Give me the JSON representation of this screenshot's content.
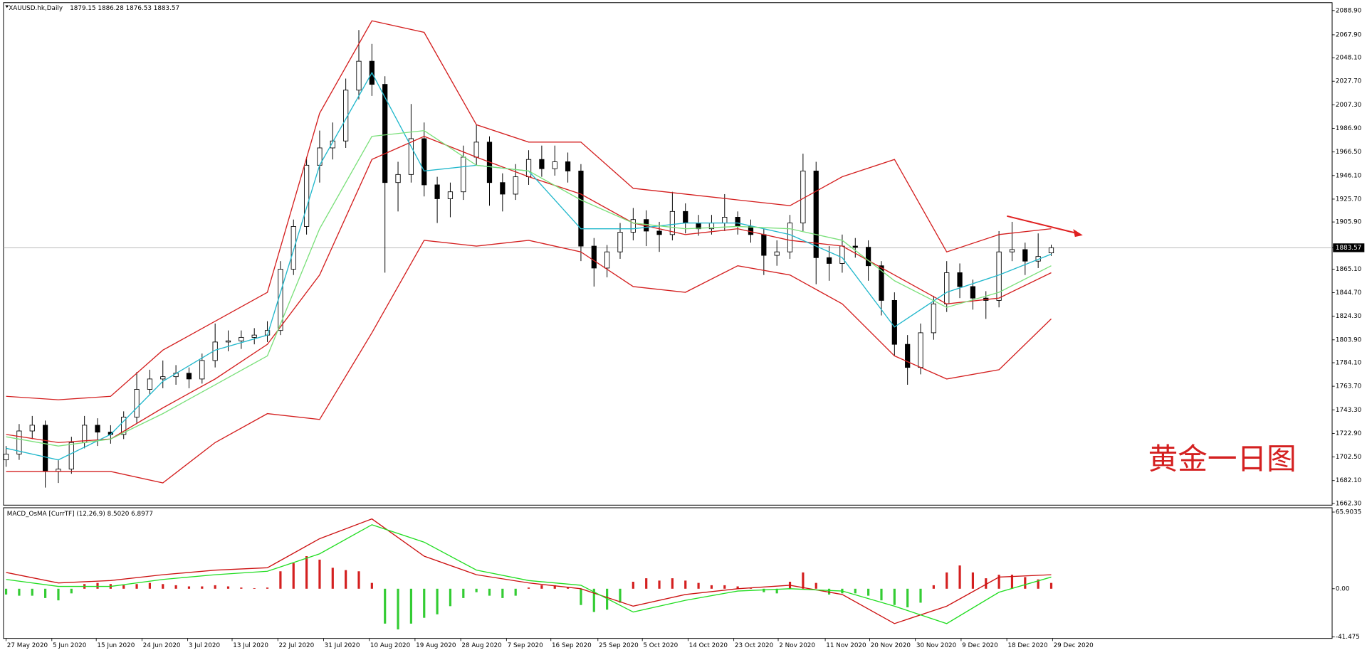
{
  "chart_data": [
    {
      "type": "candlestick",
      "title": "XAUUSD.hk,Daily",
      "annotation": "黄金一日图",
      "xlim": [
        -0.2,
        101.5
      ],
      "ylim": [
        1660.8,
        2095.7
      ],
      "yticks": [
        {
          "value": 2088.9,
          "label": "2088.90"
        },
        {
          "value": 2067.9,
          "label": "2067.90"
        },
        {
          "value": 2048.1,
          "label": "2048.10"
        },
        {
          "value": 2027.7,
          "label": "2027.70"
        },
        {
          "value": 2007.3,
          "label": "2007.30"
        },
        {
          "value": 1986.9,
          "label": "1986.90"
        },
        {
          "value": 1966.5,
          "label": "1966.50"
        },
        {
          "value": 1946.1,
          "label": "1946.10"
        },
        {
          "value": 1925.7,
          "label": "1925.70"
        },
        {
          "value": 1905.9,
          "label": "1905.90"
        },
        1883.57,
        {
          "value": 1865.1,
          "label": "1865.10"
        },
        {
          "value": 1844.7,
          "label": "1844.70"
        },
        {
          "value": 1824.3,
          "label": "1824.30"
        },
        {
          "value": 1803.9,
          "label": "1803.90"
        },
        {
          "value": 1784.1,
          "label": "1784.10"
        },
        {
          "value": 1763.7,
          "label": "1763.70"
        },
        {
          "value": 1743.3,
          "label": "1743.30"
        },
        {
          "value": 1722.9,
          "label": "1722.90"
        },
        {
          "value": 1702.5,
          "label": "1702.50"
        },
        {
          "value": 1682.1,
          "label": "1682.10"
        },
        {
          "value": 1662.3,
          "label": "1662.30"
        }
      ],
      "ohlc": [
        [
          1700,
          1712,
          1694,
          1705
        ],
        [
          1705,
          1731,
          1700,
          1725
        ],
        [
          1725,
          1738,
          1718,
          1730
        ],
        [
          1730,
          1734,
          1676,
          1690
        ],
        [
          1690,
          1700,
          1680,
          1692
        ],
        [
          1692,
          1720,
          1688,
          1715
        ],
        [
          1715,
          1738,
          1710,
          1730
        ],
        [
          1730,
          1736,
          1712,
          1724
        ],
        [
          1724,
          1730,
          1714,
          1722
        ],
        [
          1722,
          1742,
          1718,
          1737
        ],
        [
          1737,
          1776,
          1732,
          1761
        ],
        [
          1761,
          1778,
          1756,
          1770
        ],
        [
          1770,
          1786,
          1762,
          1772
        ],
        [
          1772,
          1782,
          1765,
          1775
        ],
        [
          1775,
          1780,
          1762,
          1770
        ],
        [
          1770,
          1792,
          1766,
          1786
        ],
        [
          1786,
          1818,
          1780,
          1802
        ],
        [
          1802,
          1812,
          1794,
          1803
        ],
        [
          1803,
          1812,
          1796,
          1806
        ],
        [
          1806,
          1814,
          1800,
          1808
        ],
        [
          1808,
          1820,
          1802,
          1812
        ],
        [
          1812,
          1872,
          1808,
          1865
        ],
        [
          1865,
          1908,
          1860,
          1902
        ],
        [
          1902,
          1962,
          1895,
          1955
        ],
        [
          1955,
          1985,
          1940,
          1970
        ],
        [
          1970,
          1992,
          1960,
          1976
        ],
        [
          1976,
          2030,
          1970,
          2020
        ],
        [
          2020,
          2072,
          2012,
          2045
        ],
        [
          2045,
          2060,
          2015,
          2025
        ],
        [
          2025,
          2032,
          1862,
          1940
        ],
        [
          1940,
          1958,
          1915,
          1947
        ],
        [
          1947,
          2008,
          1940,
          1978
        ],
        [
          1978,
          1992,
          1928,
          1938
        ],
        [
          1938,
          1945,
          1905,
          1926
        ],
        [
          1926,
          1940,
          1910,
          1932
        ],
        [
          1932,
          1972,
          1925,
          1962
        ],
        [
          1962,
          1990,
          1955,
          1975
        ],
        [
          1975,
          1980,
          1920,
          1940
        ],
        [
          1940,
          1948,
          1915,
          1930
        ],
        [
          1930,
          1956,
          1925,
          1945
        ],
        [
          1945,
          1968,
          1938,
          1960
        ],
        [
          1960,
          1972,
          1945,
          1952
        ],
        [
          1952,
          1972,
          1946,
          1958
        ],
        [
          1958,
          1966,
          1940,
          1950
        ],
        [
          1950,
          1956,
          1872,
          1885
        ],
        [
          1885,
          1892,
          1850,
          1866
        ],
        [
          1866,
          1886,
          1858,
          1880
        ],
        [
          1880,
          1905,
          1874,
          1897
        ],
        [
          1897,
          1918,
          1890,
          1908
        ],
        [
          1908,
          1916,
          1885,
          1898
        ],
        [
          1898,
          1906,
          1880,
          1895
        ],
        [
          1895,
          1932,
          1890,
          1915
        ],
        [
          1915,
          1922,
          1896,
          1905
        ],
        [
          1905,
          1912,
          1894,
          1900
        ],
        [
          1900,
          1912,
          1895,
          1905
        ],
        [
          1905,
          1930,
          1898,
          1910
        ],
        [
          1910,
          1915,
          1895,
          1902
        ],
        [
          1902,
          1908,
          1888,
          1895
        ],
        [
          1895,
          1900,
          1860,
          1877
        ],
        [
          1877,
          1890,
          1868,
          1880
        ],
        [
          1880,
          1912,
          1874,
          1905
        ],
        [
          1905,
          1965,
          1898,
          1950
        ],
        [
          1950,
          1958,
          1852,
          1875
        ],
        [
          1875,
          1885,
          1855,
          1870
        ],
        [
          1870,
          1895,
          1862,
          1885
        ],
        [
          1885,
          1892,
          1875,
          1884
        ],
        [
          1884,
          1890,
          1855,
          1868
        ],
        [
          1868,
          1872,
          1825,
          1838
        ],
        [
          1838,
          1845,
          1790,
          1800
        ],
        [
          1800,
          1808,
          1765,
          1780
        ],
        [
          1780,
          1818,
          1774,
          1810
        ],
        [
          1810,
          1842,
          1804,
          1835
        ],
        [
          1835,
          1872,
          1828,
          1862
        ],
        [
          1862,
          1870,
          1840,
          1850
        ],
        [
          1850,
          1856,
          1830,
          1840
        ],
        [
          1840,
          1846,
          1822,
          1838
        ],
        [
          1838,
          1898,
          1832,
          1880
        ],
        [
          1880,
          1906,
          1872,
          1882
        ],
        [
          1882,
          1888,
          1860,
          1872
        ],
        [
          1872,
          1896,
          1866,
          1876
        ],
        [
          1879.15,
          1886.28,
          1876.53,
          1883.57
        ]
      ],
      "lines": [
        {
          "color": "#d42020",
          "x": [
            0,
            4,
            8,
            12,
            16,
            20,
            24,
            28,
            32,
            36,
            40,
            44,
            48,
            52,
            56,
            60,
            64,
            68,
            72,
            76,
            80
          ],
          "values": [
            1755,
            1752,
            1755,
            1795,
            1820,
            1845,
            2000,
            2080,
            2070,
            1990,
            1975,
            1975,
            1935,
            1930,
            1925,
            1920,
            1945,
            1960,
            1880,
            1895,
            1900
          ]
        },
        {
          "color": "#d42020",
          "x": [
            0,
            4,
            8,
            12,
            16,
            20,
            24,
            28,
            32,
            36,
            40,
            44,
            48,
            52,
            56,
            60,
            64,
            68,
            72,
            76,
            80
          ],
          "values": [
            1722,
            1715,
            1718,
            1745,
            1770,
            1800,
            1860,
            1960,
            1980,
            1962,
            1945,
            1930,
            1905,
            1895,
            1900,
            1890,
            1885,
            1860,
            1835,
            1840,
            1862
          ]
        },
        {
          "color": "#d42020",
          "x": [
            0,
            4,
            8,
            12,
            16,
            20,
            24,
            28,
            32,
            36,
            40,
            44,
            48,
            52,
            56,
            60,
            64,
            68,
            72,
            76,
            80
          ],
          "values": [
            1690,
            1690,
            1690,
            1680,
            1715,
            1740,
            1735,
            1810,
            1890,
            1885,
            1890,
            1880,
            1850,
            1845,
            1868,
            1860,
            1835,
            1790,
            1770,
            1778,
            1822
          ]
        },
        {
          "color": "#22b8cc",
          "x": [
            0,
            4,
            8,
            12,
            16,
            20,
            24,
            28,
            32,
            36,
            40,
            44,
            48,
            52,
            56,
            60,
            64,
            68,
            72,
            76,
            80
          ],
          "values": [
            1710,
            1700,
            1722,
            1768,
            1795,
            1808,
            1955,
            2035,
            1950,
            1955,
            1950,
            1900,
            1900,
            1905,
            1905,
            1895,
            1875,
            1815,
            1845,
            1860,
            1878
          ]
        },
        {
          "color": "#7be07b",
          "x": [
            0,
            4,
            8,
            12,
            16,
            20,
            24,
            28,
            32,
            36,
            40,
            44,
            48,
            52,
            56,
            60,
            64,
            68,
            72,
            76,
            80
          ],
          "values": [
            1720,
            1712,
            1718,
            1740,
            1765,
            1790,
            1900,
            1980,
            1985,
            1955,
            1950,
            1925,
            1905,
            1900,
            1902,
            1900,
            1890,
            1855,
            1832,
            1845,
            1868
          ]
        }
      ]
    },
    {
      "type": "bar",
      "title": "MACD_OsMA [CurrTF] (12,26,9) 8.5020 6.8977",
      "xlim": [
        -0.2,
        101.5
      ],
      "ylim": [
        -42.7,
        69.6
      ],
      "yticks": [
        65.9035,
        {
          "value": 0,
          "label": "0.00"
        },
        -41.475
      ],
      "xticks": [
        {
          "value": 0,
          "label": "27 May 2020"
        },
        {
          "value": 3.5,
          "label": "5 Jun 2020"
        },
        {
          "value": 6.9,
          "label": "15 Jun 2020"
        },
        {
          "value": 10.4,
          "label": "24 Jun 2020"
        },
        {
          "value": 13.9,
          "label": "3 Jul 2020"
        },
        {
          "value": 17.3,
          "label": "13 Jul 2020"
        },
        {
          "value": 20.8,
          "label": "22 Jul 2020"
        },
        {
          "value": 24.3,
          "label": "31 Jul 2020"
        },
        {
          "value": 27.8,
          "label": "10 Aug 2020"
        },
        {
          "value": 31.3,
          "label": "19 Aug 2020"
        },
        {
          "value": 34.8,
          "label": "28 Aug 2020"
        },
        {
          "value": 38.3,
          "label": "7 Sep 2020"
        },
        {
          "value": 41.7,
          "label": "16 Sep 2020"
        },
        {
          "value": 45.3,
          "label": "25 Sep 2020"
        },
        {
          "value": 48.7,
          "label": "5 Oct 2020"
        },
        {
          "value": 52.2,
          "label": "14 Oct 2020"
        },
        {
          "value": 55.7,
          "label": "23 Oct 2020"
        },
        {
          "value": 59.1,
          "label": "2 Nov 2020"
        },
        {
          "value": 62.7,
          "label": "11 Nov 2020"
        },
        {
          "value": 66.1,
          "label": "20 Nov 2020"
        },
        {
          "value": 69.6,
          "label": "30 Nov 2020"
        },
        {
          "value": 73.1,
          "label": "9 Dec 2020"
        },
        {
          "value": 76.6,
          "label": "18 Dec 2020"
        },
        {
          "value": 80.1,
          "label": "29 Dec 2020"
        }
      ],
      "up_color": "#d42020",
      "down_color": "#33cc33",
      "values": [
        -5,
        -6,
        -6,
        -8,
        -10,
        -4,
        4,
        5,
        4,
        3,
        4,
        5,
        4,
        3,
        2,
        2,
        3,
        2,
        1,
        0.5,
        1,
        15,
        22,
        28,
        25,
        18,
        16,
        15,
        5,
        -30,
        -35,
        -30,
        -25,
        -22,
        -15,
        -8,
        -3,
        -6,
        -8,
        -6,
        1,
        3,
        3,
        1,
        -14,
        -20,
        -18,
        -12,
        6,
        9,
        7,
        9,
        7,
        5,
        3,
        3,
        2,
        1,
        -3,
        -4,
        6,
        14,
        5,
        -5,
        -4,
        -4,
        -6,
        -10,
        -14,
        -16,
        -12,
        3,
        14,
        20,
        14,
        9,
        12,
        12,
        10,
        8,
        5
      ],
      "lines": [
        {
          "color": "#cc1111",
          "x": [
            0,
            4,
            8,
            12,
            16,
            20,
            24,
            28,
            32,
            36,
            40,
            44,
            48,
            52,
            56,
            60,
            64,
            68,
            72,
            76,
            80
          ],
          "values": [
            14,
            5,
            7,
            12,
            16,
            18,
            43,
            60,
            28,
            12,
            5,
            0,
            -15,
            -5,
            0,
            3,
            -5,
            -30,
            -15,
            10,
            12
          ]
        },
        {
          "color": "#22dd22",
          "x": [
            0,
            4,
            8,
            12,
            16,
            20,
            24,
            28,
            32,
            36,
            40,
            44,
            48,
            52,
            56,
            60,
            64,
            68,
            72,
            76,
            80
          ],
          "values": [
            8,
            2,
            2,
            8,
            12,
            15,
            30,
            55,
            40,
            16,
            7,
            3,
            -20,
            -10,
            -2,
            0,
            -2,
            -15,
            -30,
            -3,
            10
          ]
        }
      ]
    }
  ]
}
